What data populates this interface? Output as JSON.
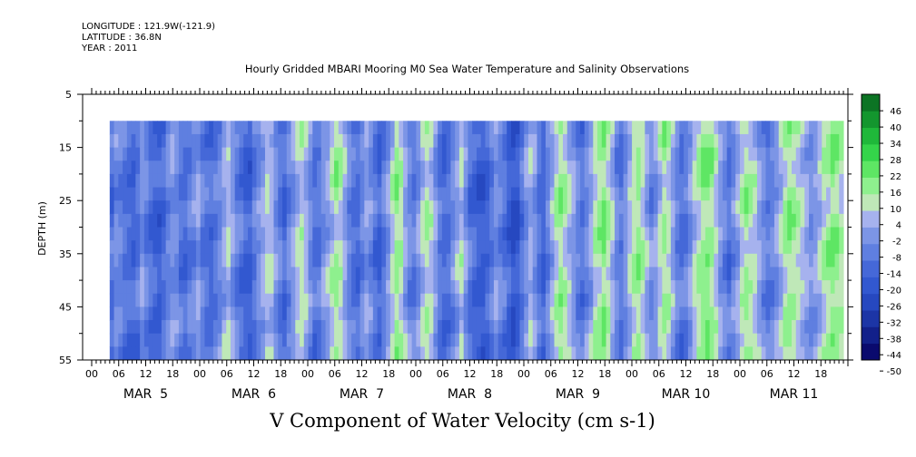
{
  "header": {
    "longitude": "LONGITUDE : 121.9W(-121.9)",
    "latitude": "LATITUDE : 36.8N",
    "year": "YEAR : 2011"
  },
  "chart_data": {
    "type": "heatmap",
    "title": "Hourly Gridded MBARI Mooring M0 Sea Water Temperature and Salinity Observations",
    "xlabel_bottom": "V Component of Water Velocity (cm s-1)",
    "ylabel": "DEPTH (m)",
    "ylim": [
      5,
      55
    ],
    "y_axis_inverted": true,
    "y_ticks": [
      5,
      15,
      25,
      35,
      45,
      55
    ],
    "hour_ticks": [
      "00",
      "06",
      "12",
      "18",
      "00",
      "06",
      "12",
      "18",
      "00",
      "06",
      "12",
      "18",
      "00",
      "06",
      "12",
      "18",
      "00",
      "06",
      "12",
      "18",
      "00",
      "06",
      "12",
      "18",
      "00",
      "06",
      "12",
      "18"
    ],
    "day_labels": [
      "MAR  5",
      "MAR  6",
      "MAR  7",
      "MAR  8",
      "MAR  9",
      "MAR 10",
      "MAR 11"
    ],
    "x_range_hours": [
      0,
      168
    ],
    "data_x_range_hours": [
      4,
      167
    ],
    "data_depth_range": [
      10,
      55
    ],
    "colorbar": {
      "levels": [
        -50,
        -44,
        -38,
        -32,
        -26,
        -20,
        -14,
        -8,
        -2,
        4,
        10,
        16,
        22,
        28,
        34,
        40,
        46
      ],
      "labels": [
        "46",
        "40",
        "34",
        "28",
        "22",
        "16",
        "10",
        "4",
        "-2",
        "-8",
        "-14",
        "-20",
        "-26",
        "-32",
        "-38",
        "-44",
        "-50"
      ]
    },
    "hourly_v_column_mean": [
      -14,
      -8,
      -10,
      -14,
      -16,
      -18,
      -14,
      -6,
      -10,
      -16,
      -18,
      -20,
      -16,
      -10,
      -6,
      -8,
      -14,
      -16,
      -12,
      -8,
      -4,
      -10,
      -14,
      -16,
      -12,
      -8,
      -2,
      2,
      -4,
      -10,
      -14,
      -18,
      -20,
      -12,
      -6,
      -2,
      4,
      2,
      -6,
      -12,
      -16,
      -10,
      -4,
      2,
      6,
      0,
      -8,
      -14,
      -12,
      -6,
      -2,
      4,
      10,
      6,
      -2,
      -10,
      -14,
      -16,
      -10,
      -4,
      -8,
      -14,
      -18,
      -12,
      -4,
      4,
      12,
      8,
      -2,
      -8,
      -12,
      -6,
      2,
      8,
      4,
      -4,
      -12,
      -16,
      -14,
      -8,
      -2,
      4,
      -6,
      -14,
      -18,
      -20,
      -22,
      -18,
      -12,
      -6,
      -10,
      -14,
      -20,
      -24,
      -22,
      -14,
      -6,
      0,
      -6,
      -14,
      -18,
      -10,
      -2,
      6,
      12,
      8,
      2,
      -4,
      -10,
      -14,
      -8,
      -2,
      6,
      10,
      14,
      8,
      0,
      -8,
      -12,
      -6,
      2,
      8,
      12,
      6,
      -2,
      -8,
      -4,
      4,
      10,
      6,
      -2,
      -10,
      -14,
      -12,
      -6,
      2,
      8,
      12,
      14,
      10,
      4,
      -4,
      -10,
      -14,
      -8,
      -2,
      6,
      10,
      8,
      4,
      -2,
      -8,
      -12,
      -10,
      -4,
      2,
      8,
      12,
      10,
      6,
      2,
      -2,
      -6,
      -4,
      2,
      8,
      10,
      14,
      12,
      8
    ]
  }
}
